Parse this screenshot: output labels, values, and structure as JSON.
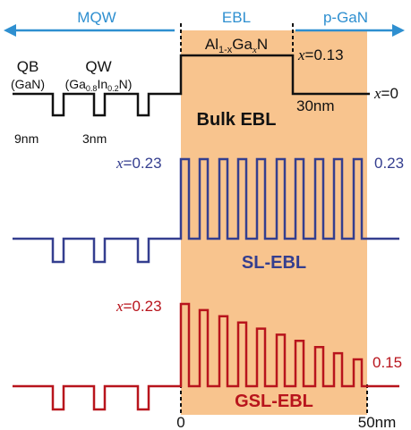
{
  "regions": {
    "mqw": "MQW",
    "ebl": "EBL",
    "pgan": "p-GaN"
  },
  "top": {
    "qb_label": "QB",
    "qb_material": "(GaN)",
    "qw_label": "QW",
    "qw_material_prefix": "(Ga",
    "qw_sub1": "0.8",
    "qw_mid": "In",
    "qw_sub2": "0.2",
    "qw_suffix": "N)",
    "ebl_material_prefix": "Al",
    "ebl_sub1": "1-x",
    "ebl_mid": "Ga",
    "ebl_sub2": "x",
    "ebl_suffix": "N",
    "x_symbol": "x",
    "x_value": "=0.13",
    "x0_value": "=0",
    "thickness_label": "30nm",
    "qb_thickness": "9nm",
    "qw_thickness": "3nm",
    "name": "Bulk EBL"
  },
  "sl": {
    "x_symbol": "x",
    "x_left": "=0.23",
    "x_right": "0.23",
    "name": "SL-EBL"
  },
  "gsl": {
    "x_symbol": "x",
    "x_left": "=0.23",
    "x_right": "0.15",
    "name": "GSL-EBL"
  },
  "axis": {
    "start": "0",
    "end": "50nm"
  },
  "colors": {
    "ebl_fill": "#f8c48e",
    "arrow_blue": "#2e8fd0",
    "bulk_black": "#111111",
    "sl_blue": "#343e8f",
    "gsl_red": "#b8141c"
  }
}
